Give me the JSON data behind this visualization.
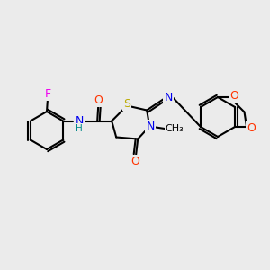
{
  "bg_color": "#ebebeb",
  "bond_color": "#000000",
  "atom_colors": {
    "F": "#ee00ee",
    "O": "#ff3300",
    "N": "#0000ee",
    "S": "#bbaa00",
    "H": "#008888",
    "C": "#000000"
  },
  "figsize": [
    3.0,
    3.0
  ],
  "dpi": 100
}
